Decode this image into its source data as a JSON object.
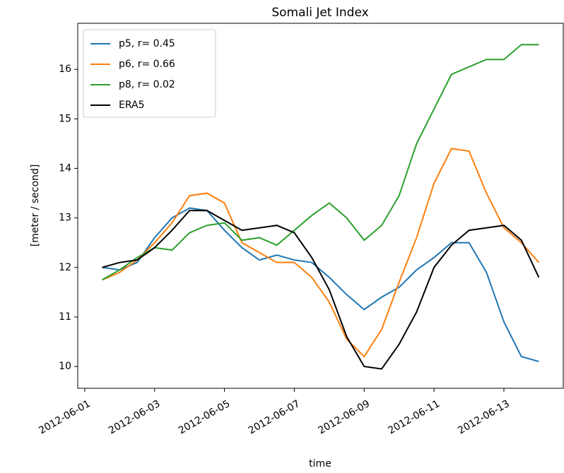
{
  "chart_data": {
    "type": "line",
    "title": "Somali Jet Index",
    "xlabel": "time",
    "ylabel": "[meter / second]",
    "x": [
      "2012-06-01T12:00Z",
      "2012-06-02T00:00Z",
      "2012-06-02T12:00Z",
      "2012-06-03T00:00Z",
      "2012-06-03T12:00Z",
      "2012-06-04T00:00Z",
      "2012-06-04T12:00Z",
      "2012-06-05T00:00Z",
      "2012-06-05T12:00Z",
      "2012-06-06T00:00Z",
      "2012-06-06T12:00Z",
      "2012-06-07T00:00Z",
      "2012-06-07T12:00Z",
      "2012-06-08T00:00Z",
      "2012-06-08T12:00Z",
      "2012-06-09T00:00Z",
      "2012-06-09T12:00Z",
      "2012-06-10T00:00Z",
      "2012-06-10T12:00Z",
      "2012-06-11T00:00Z",
      "2012-06-11T12:00Z",
      "2012-06-12T00:00Z",
      "2012-06-12T12:00Z",
      "2012-06-13T00:00Z",
      "2012-06-13T12:00Z",
      "2012-06-14T00:00Z"
    ],
    "series": [
      {
        "name": "p5, r= 0.45",
        "color": "#1f77b4",
        "values": [
          12.0,
          11.95,
          12.1,
          12.6,
          13.0,
          13.2,
          13.15,
          12.75,
          12.4,
          12.15,
          12.25,
          12.15,
          12.1,
          11.8,
          11.45,
          11.15,
          11.4,
          11.6,
          11.95,
          12.2,
          12.5,
          12.5,
          11.9,
          10.9,
          10.2,
          10.1
        ]
      },
      {
        "name": "p6, r= 0.66",
        "color": "#ff7f0e",
        "values": [
          11.75,
          11.9,
          12.15,
          12.5,
          12.9,
          13.45,
          13.5,
          13.3,
          12.5,
          12.3,
          12.1,
          12.1,
          11.8,
          11.3,
          10.55,
          10.2,
          10.75,
          11.7,
          12.6,
          13.7,
          14.4,
          14.35,
          13.5,
          12.8,
          12.5,
          12.1
        ]
      },
      {
        "name": "p8, r= 0.02",
        "color": "#2ca02c",
        "values": [
          11.75,
          11.95,
          12.2,
          12.4,
          12.35,
          12.7,
          12.85,
          12.9,
          12.55,
          12.6,
          12.45,
          12.75,
          13.05,
          13.3,
          13.0,
          12.55,
          12.85,
          13.45,
          14.5,
          15.2,
          15.9,
          16.05,
          16.2,
          16.2,
          16.5,
          16.5
        ]
      },
      {
        "name": "ERA5",
        "color": "#000000",
        "values": [
          12.0,
          12.1,
          12.15,
          12.4,
          12.75,
          13.15,
          13.15,
          12.95,
          12.75,
          12.8,
          12.85,
          12.7,
          12.2,
          11.55,
          10.6,
          10.0,
          9.95,
          10.45,
          11.1,
          12.0,
          12.45,
          12.75,
          12.8,
          12.85,
          12.55,
          11.8
        ]
      }
    ],
    "xlim": [
      "2012-05-31T19:12Z",
      "2012-06-14T16:48Z"
    ],
    "xticks": [
      "2012-06-01",
      "2012-06-03",
      "2012-06-05",
      "2012-06-07",
      "2012-06-09",
      "2012-06-11",
      "2012-06-13"
    ],
    "ylim": [
      9.56,
      16.93
    ],
    "yticks": [
      10,
      11,
      12,
      13,
      14,
      15,
      16
    ],
    "grid": false,
    "legend": "upper left"
  }
}
